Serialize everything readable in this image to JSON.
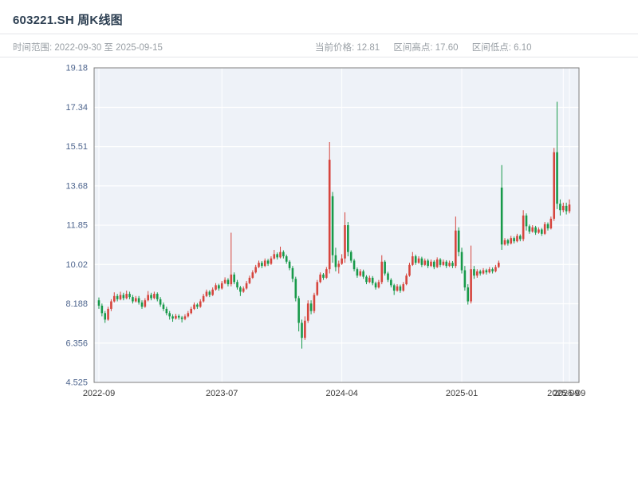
{
  "header": {
    "title": "603221.SH 周K线图",
    "subtitle_left": "时间范围: 2022-09-30 至 2025-09-15",
    "stats": [
      "当前价格: 12.81",
      "区间高点: 17.60",
      "区间低点: 6.10"
    ]
  },
  "chart_data": {
    "type": "candlestick",
    "title": "603221.SH 周K线图",
    "period": "weekly",
    "date_range": {
      "start": "2022-09-30",
      "end": "2025-09-15"
    },
    "current_price": 12.81,
    "range_high": 17.6,
    "range_low": 6.1,
    "ylim": [
      4.525,
      19.18
    ],
    "y_ticks": [
      "4.525",
      "6.356",
      "8.188",
      "10.02",
      "11.85",
      "13.68",
      "15.51",
      "17.34",
      "19.18"
    ],
    "x_ticks": [
      {
        "label": "2022-09",
        "index": 0
      },
      {
        "label": "2023-07",
        "index": 40
      },
      {
        "label": "2024-04",
        "index": 79
      },
      {
        "label": "2025-01",
        "index": 118
      },
      {
        "label": "2025-09",
        "index": 151
      },
      {
        "label": "2025-09",
        "index": 153
      }
    ],
    "grid": true,
    "legend": "none",
    "colors": {
      "up": "#d6453d",
      "down": "#189a4a",
      "plot_bg": "#eef2f8",
      "grid": "#ffffff",
      "border": "#7d7d7d",
      "y_label": "#4d648d",
      "x_label": "#3a3a3a"
    },
    "candles_format": [
      "open",
      "high",
      "low",
      "close"
    ],
    "candles": [
      [
        8.35,
        8.48,
        7.95,
        8.1
      ],
      [
        8.1,
        8.2,
        7.6,
        7.75
      ],
      [
        7.75,
        7.85,
        7.3,
        7.45
      ],
      [
        7.45,
        8.05,
        7.4,
        7.95
      ],
      [
        7.95,
        8.4,
        7.85,
        8.3
      ],
      [
        8.3,
        8.72,
        8.25,
        8.55
      ],
      [
        8.55,
        8.65,
        8.3,
        8.4
      ],
      [
        8.4,
        8.75,
        8.35,
        8.6
      ],
      [
        8.6,
        8.7,
        8.35,
        8.45
      ],
      [
        8.45,
        8.8,
        8.4,
        8.65
      ],
      [
        8.65,
        8.75,
        8.4,
        8.5
      ],
      [
        8.5,
        8.6,
        8.2,
        8.3
      ],
      [
        8.3,
        8.55,
        8.25,
        8.45
      ],
      [
        8.45,
        8.55,
        8.15,
        8.25
      ],
      [
        8.25,
        8.35,
        7.95,
        8.05
      ],
      [
        8.05,
        8.45,
        8.0,
        8.35
      ],
      [
        8.35,
        8.78,
        8.3,
        8.6
      ],
      [
        8.6,
        8.7,
        8.35,
        8.45
      ],
      [
        8.45,
        8.75,
        8.4,
        8.65
      ],
      [
        8.65,
        8.72,
        8.3,
        8.4
      ],
      [
        8.4,
        8.5,
        8.05,
        8.15
      ],
      [
        8.15,
        8.25,
        7.85,
        7.95
      ],
      [
        7.95,
        8.05,
        7.65,
        7.75
      ],
      [
        7.75,
        7.85,
        7.45,
        7.6
      ],
      [
        7.6,
        7.7,
        7.35,
        7.5
      ],
      [
        7.5,
        7.72,
        7.45,
        7.62
      ],
      [
        7.62,
        7.7,
        7.45,
        7.55
      ],
      [
        7.55,
        7.62,
        7.32,
        7.48
      ],
      [
        7.48,
        7.7,
        7.42,
        7.6
      ],
      [
        7.6,
        7.85,
        7.55,
        7.75
      ],
      [
        7.75,
        8.05,
        7.7,
        7.95
      ],
      [
        7.95,
        8.25,
        7.9,
        8.15
      ],
      [
        8.15,
        8.22,
        7.95,
        8.05
      ],
      [
        8.05,
        8.4,
        8.0,
        8.3
      ],
      [
        8.3,
        8.65,
        8.25,
        8.55
      ],
      [
        8.55,
        8.85,
        8.5,
        8.75
      ],
      [
        8.75,
        8.82,
        8.5,
        8.6
      ],
      [
        8.6,
        8.95,
        8.55,
        8.85
      ],
      [
        8.85,
        9.15,
        8.8,
        9.05
      ],
      [
        9.05,
        9.12,
        8.8,
        8.9
      ],
      [
        8.9,
        9.25,
        8.85,
        9.15
      ],
      [
        9.15,
        9.42,
        9.1,
        9.3
      ],
      [
        9.3,
        9.38,
        9.0,
        9.1
      ],
      [
        9.1,
        11.5,
        9.0,
        9.55
      ],
      [
        9.55,
        9.65,
        9.1,
        9.2
      ],
      [
        9.2,
        9.3,
        8.85,
        8.95
      ],
      [
        8.95,
        9.02,
        8.55,
        8.75
      ],
      [
        8.75,
        9.0,
        8.7,
        8.9
      ],
      [
        8.9,
        9.25,
        8.85,
        9.15
      ],
      [
        9.15,
        9.5,
        9.1,
        9.4
      ],
      [
        9.4,
        9.75,
        9.35,
        9.65
      ],
      [
        9.65,
        10.0,
        9.6,
        9.9
      ],
      [
        9.9,
        10.2,
        9.85,
        10.1
      ],
      [
        10.1,
        10.18,
        9.85,
        9.95
      ],
      [
        9.95,
        10.3,
        9.9,
        10.2
      ],
      [
        10.2,
        10.28,
        9.95,
        10.05
      ],
      [
        10.05,
        10.4,
        10.0,
        10.3
      ],
      [
        10.3,
        10.7,
        10.25,
        10.5
      ],
      [
        10.5,
        10.58,
        10.25,
        10.35
      ],
      [
        10.35,
        10.85,
        10.3,
        10.6
      ],
      [
        10.6,
        10.68,
        10.3,
        10.4
      ],
      [
        10.4,
        10.48,
        10.05,
        10.15
      ],
      [
        10.15,
        10.22,
        9.75,
        9.85
      ],
      [
        9.85,
        9.95,
        9.2,
        9.35
      ],
      [
        9.35,
        9.45,
        8.3,
        8.45
      ],
      [
        8.45,
        8.55,
        6.9,
        7.3
      ],
      [
        7.3,
        7.45,
        6.1,
        6.6
      ],
      [
        6.6,
        7.6,
        6.5,
        7.4
      ],
      [
        7.4,
        8.35,
        7.3,
        8.2
      ],
      [
        8.2,
        8.35,
        7.7,
        7.85
      ],
      [
        7.85,
        8.7,
        7.75,
        8.6
      ],
      [
        8.6,
        9.3,
        8.55,
        9.2
      ],
      [
        9.2,
        9.65,
        9.15,
        9.55
      ],
      [
        9.55,
        9.62,
        9.3,
        9.4
      ],
      [
        9.4,
        9.9,
        9.35,
        9.8
      ],
      [
        9.8,
        15.72,
        9.6,
        14.9
      ],
      [
        13.2,
        13.4,
        10.1,
        10.45
      ],
      [
        10.45,
        10.8,
        9.7,
        9.9
      ],
      [
        9.9,
        10.2,
        9.6,
        10.05
      ],
      [
        10.05,
        10.5,
        10.0,
        10.3
      ],
      [
        10.3,
        12.45,
        10.1,
        11.85
      ],
      [
        11.85,
        12.0,
        10.4,
        10.6
      ],
      [
        10.6,
        10.68,
        10.1,
        10.2
      ],
      [
        10.2,
        10.28,
        9.7,
        9.8
      ],
      [
        9.8,
        9.88,
        9.4,
        9.5
      ],
      [
        9.5,
        9.8,
        9.45,
        9.7
      ],
      [
        9.7,
        9.78,
        9.35,
        9.45
      ],
      [
        9.45,
        9.52,
        9.1,
        9.2
      ],
      [
        9.2,
        9.5,
        9.15,
        9.4
      ],
      [
        9.4,
        9.48,
        9.05,
        9.15
      ],
      [
        9.15,
        9.22,
        8.85,
        8.95
      ],
      [
        8.95,
        9.3,
        8.9,
        9.2
      ],
      [
        9.2,
        10.45,
        9.1,
        10.15
      ],
      [
        10.15,
        10.22,
        9.5,
        9.6
      ],
      [
        9.6,
        9.68,
        9.2,
        9.3
      ],
      [
        9.3,
        9.38,
        8.95,
        9.05
      ],
      [
        9.05,
        9.12,
        8.6,
        8.8
      ],
      [
        8.8,
        9.1,
        8.75,
        9.0
      ],
      [
        9.0,
        9.08,
        8.7,
        8.8
      ],
      [
        8.8,
        9.2,
        8.75,
        9.1
      ],
      [
        9.1,
        9.6,
        9.05,
        9.5
      ],
      [
        9.5,
        10.1,
        9.45,
        10.0
      ],
      [
        10.0,
        10.6,
        9.95,
        10.4
      ],
      [
        10.4,
        10.48,
        10.0,
        10.1
      ],
      [
        10.1,
        10.4,
        10.05,
        10.3
      ],
      [
        10.3,
        10.38,
        9.9,
        10.0
      ],
      [
        10.0,
        10.3,
        9.95,
        10.2
      ],
      [
        10.2,
        10.28,
        9.85,
        9.95
      ],
      [
        9.95,
        10.25,
        9.9,
        10.15
      ],
      [
        10.15,
        10.22,
        9.8,
        9.9
      ],
      [
        9.9,
        10.35,
        9.85,
        10.25
      ],
      [
        10.25,
        10.32,
        9.9,
        10.0
      ],
      [
        10.0,
        10.25,
        9.95,
        10.15
      ],
      [
        10.15,
        10.22,
        9.85,
        9.95
      ],
      [
        9.95,
        10.2,
        9.9,
        10.1
      ],
      [
        10.1,
        10.18,
        9.85,
        9.95
      ],
      [
        9.95,
        12.25,
        9.85,
        11.6
      ],
      [
        11.6,
        11.75,
        10.4,
        10.6
      ],
      [
        10.6,
        10.8,
        9.6,
        9.75
      ],
      [
        9.75,
        9.95,
        8.8,
        8.95
      ],
      [
        8.95,
        9.1,
        8.15,
        8.3
      ],
      [
        8.3,
        10.9,
        8.2,
        9.8
      ],
      [
        9.8,
        9.95,
        9.35,
        9.5
      ],
      [
        9.5,
        9.8,
        9.4,
        9.7
      ],
      [
        9.7,
        9.78,
        9.5,
        9.6
      ],
      [
        9.6,
        9.85,
        9.55,
        9.75
      ],
      [
        9.75,
        9.82,
        9.55,
        9.65
      ],
      [
        9.65,
        9.9,
        9.6,
        9.8
      ],
      [
        9.8,
        9.88,
        9.6,
        9.7
      ],
      [
        9.7,
        10.0,
        9.65,
        9.9
      ],
      [
        9.9,
        10.2,
        9.85,
        10.1
      ],
      [
        13.6,
        14.65,
        10.7,
        10.95
      ],
      [
        10.95,
        11.25,
        10.9,
        11.15
      ],
      [
        11.15,
        11.22,
        10.9,
        11.0
      ],
      [
        11.0,
        11.35,
        10.95,
        11.25
      ],
      [
        11.25,
        11.32,
        11.0,
        11.1
      ],
      [
        11.1,
        11.45,
        11.05,
        11.35
      ],
      [
        11.35,
        11.42,
        11.1,
        11.2
      ],
      [
        11.2,
        12.55,
        11.1,
        12.3
      ],
      [
        12.3,
        12.4,
        11.6,
        11.8
      ],
      [
        11.8,
        11.88,
        11.45,
        11.55
      ],
      [
        11.55,
        11.85,
        11.5,
        11.75
      ],
      [
        11.75,
        11.82,
        11.4,
        11.5
      ],
      [
        11.5,
        11.75,
        11.45,
        11.65
      ],
      [
        11.65,
        11.72,
        11.35,
        11.45
      ],
      [
        11.45,
        12.0,
        11.4,
        11.9
      ],
      [
        11.9,
        11.98,
        11.6,
        11.7
      ],
      [
        11.7,
        12.25,
        11.65,
        12.15
      ],
      [
        12.15,
        15.45,
        12.05,
        15.25
      ],
      [
        15.25,
        17.6,
        12.6,
        12.85
      ],
      [
        12.85,
        13.05,
        12.3,
        12.55
      ],
      [
        12.55,
        12.9,
        12.45,
        12.75
      ],
      [
        12.75,
        12.9,
        12.35,
        12.5
      ],
      [
        12.5,
        13.05,
        12.4,
        12.81
      ]
    ]
  }
}
